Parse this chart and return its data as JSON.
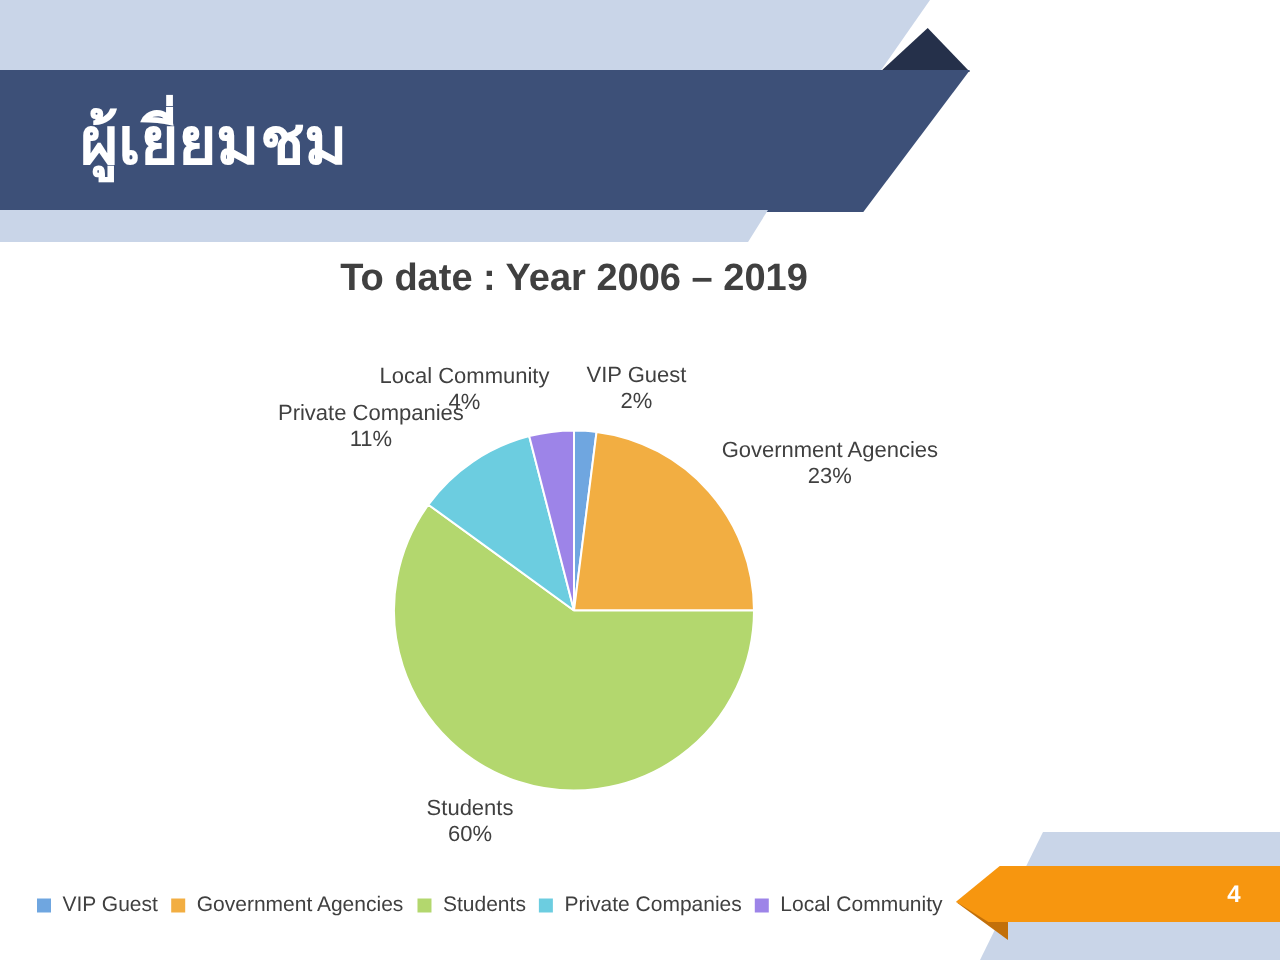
{
  "chart_data": {
    "type": "pie",
    "title": "ผู้เยี่ยมชม",
    "subtitle": "To date : Year 2006 – 2019",
    "categories": [
      "VIP Guest",
      "Government Agencies",
      "Students",
      "Private Companies",
      "Local Community"
    ],
    "values": [
      2,
      23,
      60,
      11,
      4
    ],
    "value_labels": [
      "2%",
      "23%",
      "60%",
      "11%",
      "4%"
    ],
    "colors": [
      "#6fa6e0",
      "#f2ae42",
      "#b3d76e",
      "#6ccde0",
      "#9d84e8"
    ],
    "legend": "bottom",
    "annotations": [
      "4"
    ]
  }
}
